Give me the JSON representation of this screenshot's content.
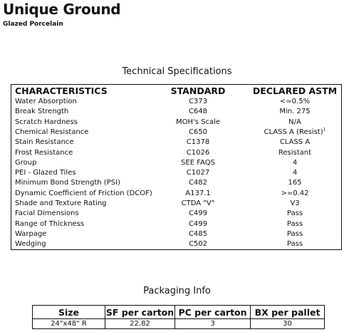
{
  "header": {
    "title": "Unique Ground",
    "subtitle": "Glazed Porcelain"
  },
  "tech": {
    "title": "Technical Specifications",
    "columns": [
      "CHARACTERISTICS",
      "STANDARD",
      "DECLARED ASTM"
    ],
    "rows": [
      [
        "Water Absorption",
        "C373",
        "<=0.5%"
      ],
      [
        "Break Strength",
        "C648",
        "Min. 275"
      ],
      [
        "Scratch Hardness",
        "MOH's Scale",
        "N/A"
      ],
      [
        "Chemical Resistance",
        "C650",
        {
          "text": "CLASS A (Resist)",
          "sup": "1"
        }
      ],
      [
        "Stain Resistance",
        "C1378",
        "CLASS A"
      ],
      [
        "Frost Resistance",
        "C1026",
        "Resistant"
      ],
      [
        "Group",
        "SEE FAQS",
        "4"
      ],
      [
        "PEI - Glazed Tiles",
        "C1027",
        "4"
      ],
      [
        "Minimum Bond Strength (PSI)",
        "C482",
        "165"
      ],
      [
        "Dynamic Coefficient of Friction (DCOF)",
        "A137.1",
        ">=0.42"
      ],
      [
        "Shade and Texture Rating",
        "CTDA \"V\"",
        "V3"
      ],
      [
        "Facial Dimensions",
        "C499",
        "Pass"
      ],
      [
        "Range of Thickness",
        "C499",
        "Pass"
      ],
      [
        "Warpage",
        "C485",
        "Pass"
      ],
      [
        "Wedging",
        "C502",
        "Pass"
      ]
    ]
  },
  "packaging": {
    "title": "Packaging Info",
    "columns": [
      "Size",
      "SF per carton",
      "PC per carton",
      "BX per pallet"
    ],
    "rows": [
      [
        "24\"x48\" R",
        "22.82",
        "3",
        "30"
      ]
    ]
  }
}
